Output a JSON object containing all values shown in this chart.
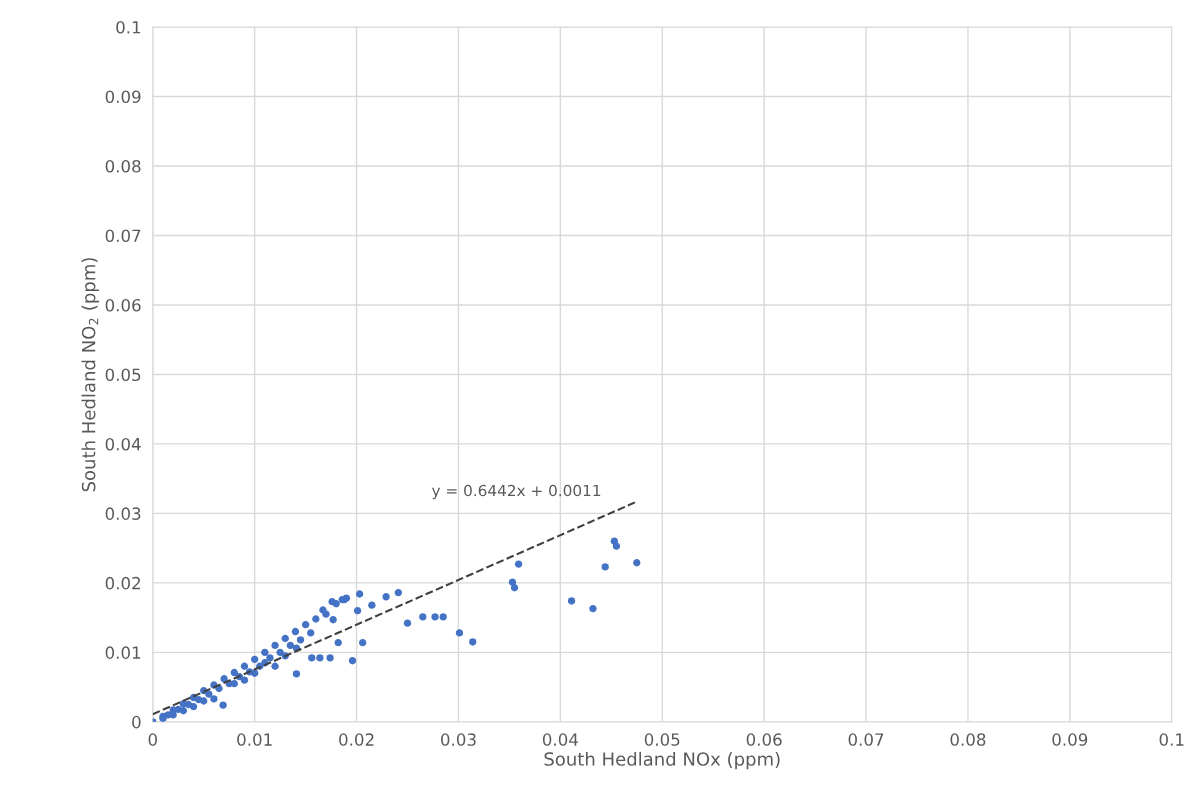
{
  "chart_data": {
    "type": "scatter",
    "xlabel": "South Hedland NOx (ppm)",
    "ylabel": "South Hedland NO$_{2}$ (ppm)",
    "xlim": [
      0,
      0.1
    ],
    "ylim": [
      0,
      0.1
    ],
    "xticks": [
      0,
      0.01,
      0.02,
      0.03,
      0.04,
      0.05,
      0.06,
      0.07,
      0.08,
      0.09,
      0.1
    ],
    "yticks": [
      0,
      0.01,
      0.02,
      0.03,
      0.04,
      0.05,
      0.06,
      0.07,
      0.08,
      0.09,
      0.1
    ],
    "grid": true,
    "annotations": [
      "y = 0.6442x + 0.0011"
    ],
    "series": [
      {
        "color": "#4472c4",
        "marker": "circle",
        "x": [
          0.0015,
          0.0025,
          0.0035,
          0.0045,
          0.0055,
          0.0065,
          0.0075,
          0.0085,
          0.0095,
          0.0105,
          0.0115,
          0.0125,
          0.0135,
          0.0145,
          0.0155,
          0,
          0.001,
          0.002,
          0.003,
          0.004,
          0.005,
          0.006,
          0.007,
          0.008,
          0.009,
          0.01,
          0.011,
          0.012,
          0.013,
          0.014,
          0.015,
          0.016,
          0.017,
          0.018,
          0.019,
          0.001,
          0.002,
          0.003,
          0.004,
          0.005,
          0.006,
          0.008,
          0.009,
          0.01,
          0.011,
          0.012,
          0.013,
          0.0069,
          0.0141,
          0.0156,
          0.0164,
          0.0174,
          0.0141,
          0.0186,
          0.0176,
          0.0167,
          0.0177,
          0.0182,
          0.0188,
          0.0196,
          0.0201,
          0.0203,
          0.0206,
          0.0215,
          0.0229,
          0.0241,
          0.025,
          0.0265,
          0.0277,
          0.0285,
          0.0301,
          0.0314,
          0.0353,
          0.0355,
          0.0359,
          0.0411,
          0.0432,
          0.0444,
          0.0453,
          0.0455,
          0.0475
        ],
        "values": [
          0.001,
          0.0018,
          0.0025,
          0.0032,
          0.004,
          0.0048,
          0.0055,
          0.0065,
          0.0072,
          0.008,
          0.0092,
          0.01,
          0.011,
          0.0118,
          0.0128,
          0,
          0.0008,
          0.0017,
          0.0026,
          0.0035,
          0.0045,
          0.0053,
          0.0062,
          0.0071,
          0.008,
          0.009,
          0.01,
          0.011,
          0.012,
          0.013,
          0.014,
          0.0148,
          0.0155,
          0.017,
          0.0178,
          0.0005,
          0.001,
          0.0016,
          0.0022,
          0.003,
          0.0033,
          0.0055,
          0.006,
          0.007,
          0.0085,
          0.008,
          0.0095,
          0.0024,
          0.0069,
          0.0092,
          0.0092,
          0.0092,
          0.0106,
          0.0176,
          0.0173,
          0.0161,
          0.0147,
          0.0114,
          0.0176,
          0.0088,
          0.016,
          0.0184,
          0.0114,
          0.0168,
          0.018,
          0.0186,
          0.0142,
          0.0151,
          0.0151,
          0.0151,
          0.0128,
          0.0115,
          0.0201,
          0.0193,
          0.0227,
          0.0174,
          0.0163,
          0.0223,
          0.026,
          0.0253,
          0.0229
        ]
      },
      {
        "type": "line",
        "line_style": "dashed",
        "color": "#404040",
        "x": [
          0,
          0.0475
        ],
        "values": [
          0.0011,
          0.0317
        ]
      }
    ]
  }
}
